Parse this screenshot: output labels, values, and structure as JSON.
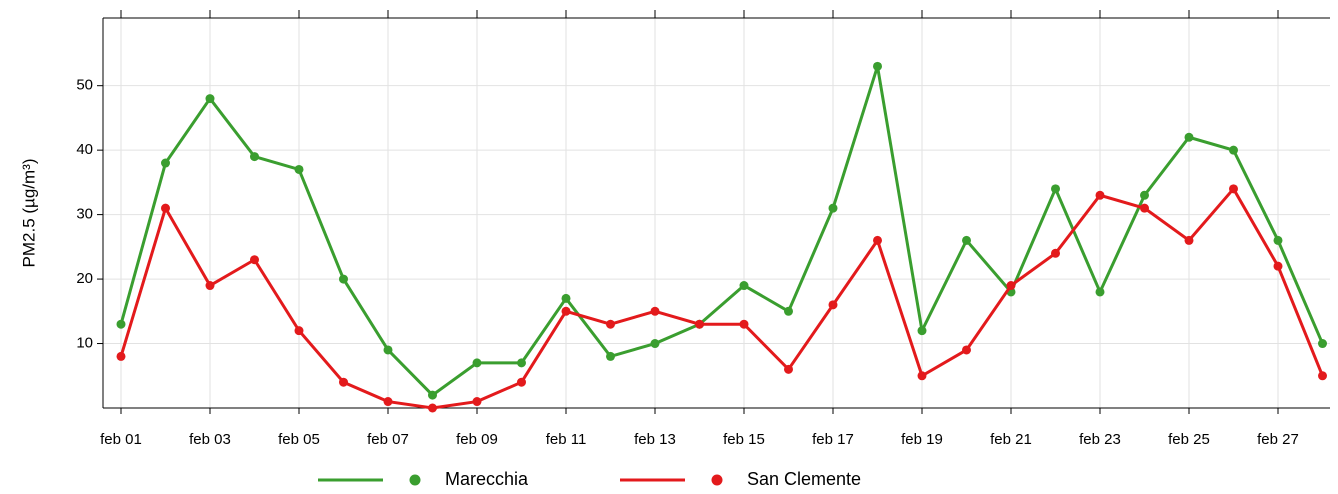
{
  "chart_data": {
    "type": "line",
    "y_label": "PM2.5 (µg/m³)",
    "categories": [
      "feb 01",
      null,
      "feb 03",
      null,
      "feb 05",
      null,
      "feb 07",
      null,
      "feb 09",
      null,
      "feb 11",
      null,
      "feb 13",
      null,
      "feb 15",
      null,
      "feb 17",
      null,
      "feb 19",
      null,
      "feb 21",
      null,
      "feb 23",
      null,
      "feb 25",
      null,
      "feb 27",
      null
    ],
    "series": [
      {
        "name": "Marecchia",
        "color": "#3a9e2f",
        "values": [
          13,
          38,
          48,
          39,
          37,
          20,
          9,
          2,
          7,
          7,
          17,
          8,
          10,
          13,
          19,
          15,
          31,
          53,
          12,
          26,
          18,
          34,
          18,
          33,
          42,
          40,
          26,
          10
        ]
      },
      {
        "name": "San Clemente",
        "color": "#e31a1c",
        "values": [
          8,
          31,
          19,
          23,
          12,
          4,
          1,
          0,
          1,
          4,
          15,
          13,
          15,
          13,
          13,
          6,
          16,
          26,
          5,
          9,
          19,
          24,
          33,
          31,
          26,
          34,
          22,
          5
        ]
      }
    ],
    "ylim": [
      0,
      60.5
    ],
    "yticks": [
      10,
      20,
      30,
      40,
      50
    ],
    "grid": true
  }
}
